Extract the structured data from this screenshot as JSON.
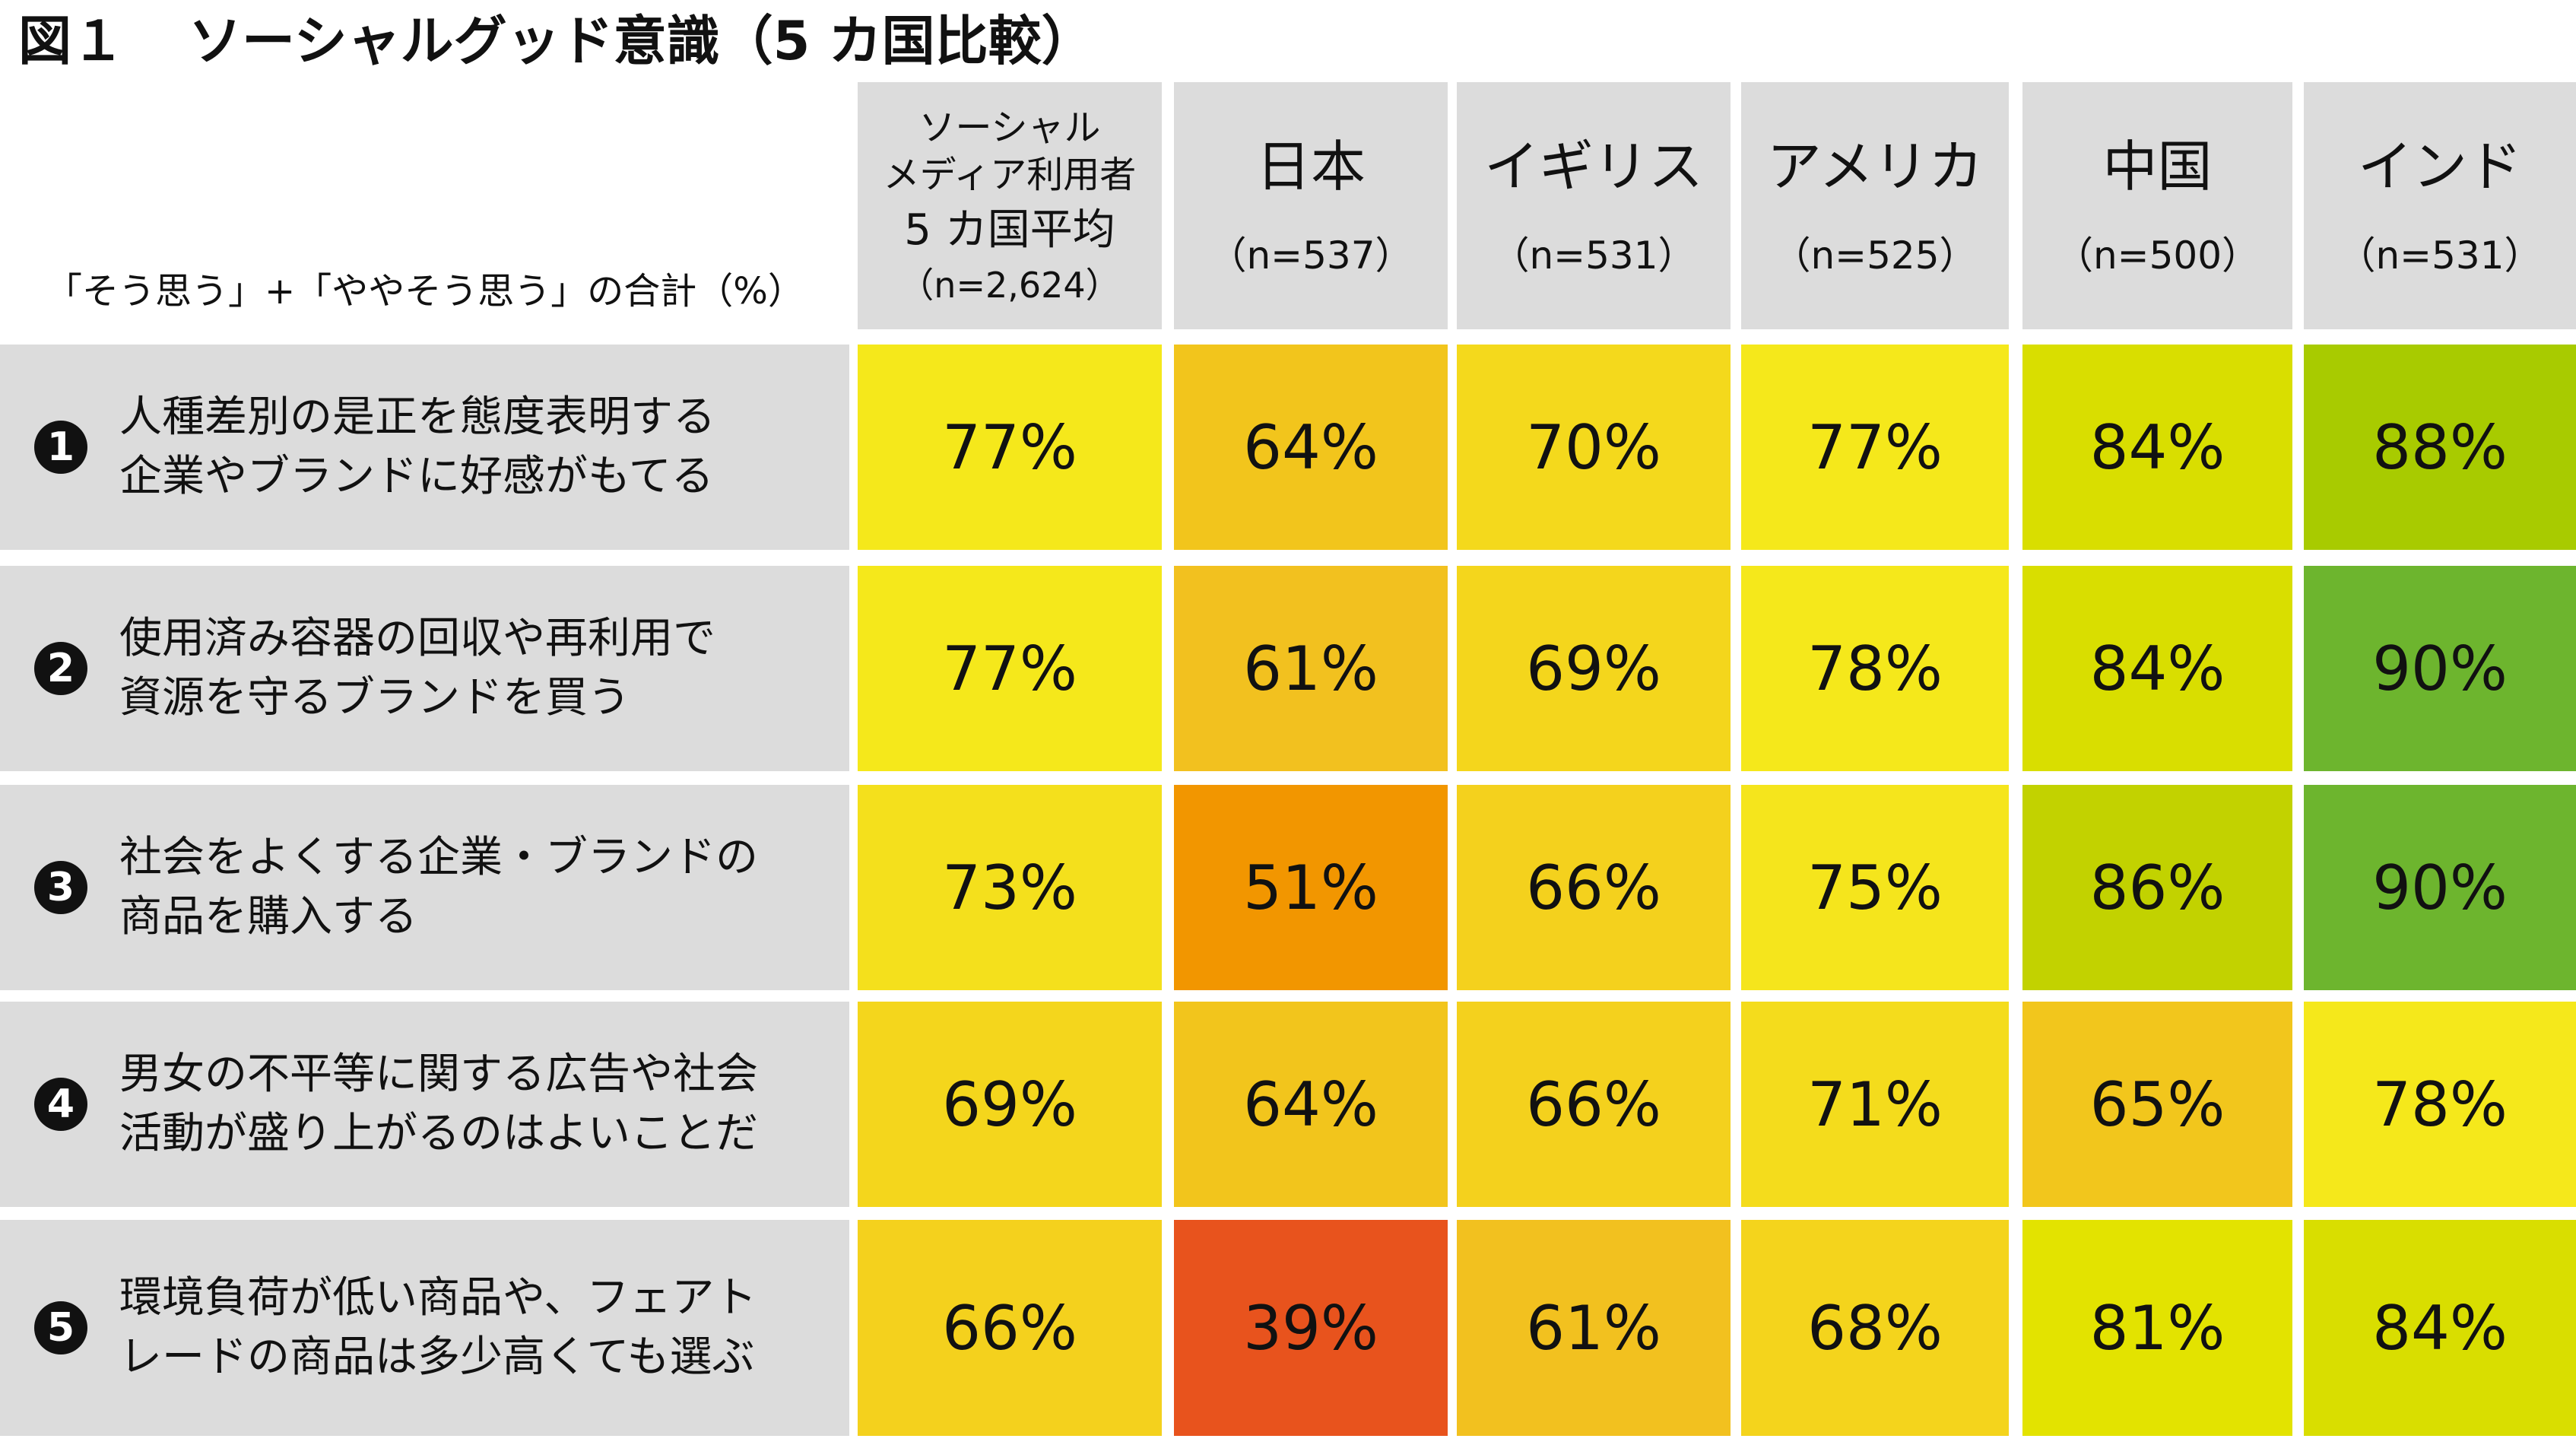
{
  "title": {
    "fig": "図１",
    "text": "ソーシャルグッド意識（5 カ国比較）"
  },
  "note": "「そう思う」+「ややそう思う」の合計（%）",
  "average_column": {
    "line1": "ソーシャル",
    "line2": "メディア利用者",
    "line3": "5 カ国平均",
    "n": "（n=2,624）"
  },
  "columns": [
    {
      "name": "日本",
      "n": "（n=537）"
    },
    {
      "name": "イギリス",
      "n": "（n=531）"
    },
    {
      "name": "アメリカ",
      "n": "（n=525）"
    },
    {
      "name": "中国",
      "n": "（n=500）"
    },
    {
      "name": "インド",
      "n": "（n=531）"
    }
  ],
  "rows": [
    {
      "num": "1",
      "text": "人種差別の是正を態度表明する\n企業やブランドに好感がもてる",
      "cells": [
        {
          "label": "77%",
          "color": "#f5e81b"
        },
        {
          "label": "64%",
          "color": "#f2c51c"
        },
        {
          "label": "70%",
          "color": "#f4d91c"
        },
        {
          "label": "77%",
          "color": "#f5e81b"
        },
        {
          "label": "84%",
          "color": "#d9de00"
        },
        {
          "label": "88%",
          "color": "#a8cb00"
        }
      ]
    },
    {
      "num": "2",
      "text": "使用済み容器の回収や再利用で\n資源を守るブランドを買う",
      "cells": [
        {
          "label": "77%",
          "color": "#f5e81b"
        },
        {
          "label": "61%",
          "color": "#f2c11f"
        },
        {
          "label": "69%",
          "color": "#f4d61c"
        },
        {
          "label": "78%",
          "color": "#f5e81b"
        },
        {
          "label": "84%",
          "color": "#d9de00"
        },
        {
          "label": "90%",
          "color": "#6db52e"
        }
      ]
    },
    {
      "num": "3",
      "text": "社会をよくする企業・ブランドの\n商品を購入する",
      "cells": [
        {
          "label": "73%",
          "color": "#f4e01c"
        },
        {
          "label": "51%",
          "color": "#f29600"
        },
        {
          "label": "66%",
          "color": "#f4d11d"
        },
        {
          "label": "75%",
          "color": "#f5e51c"
        },
        {
          "label": "86%",
          "color": "#c2d200"
        },
        {
          "label": "90%",
          "color": "#6db52e"
        }
      ]
    },
    {
      "num": "4",
      "text": "男女の不平等に関する広告や社会\n活動が盛り上がるのはよいことだ",
      "cells": [
        {
          "label": "69%",
          "color": "#f4d61c"
        },
        {
          "label": "64%",
          "color": "#f2c51c"
        },
        {
          "label": "66%",
          "color": "#f4d11d"
        },
        {
          "label": "71%",
          "color": "#f4dc1c"
        },
        {
          "label": "65%",
          "color": "#f2c61c"
        },
        {
          "label": "78%",
          "color": "#f5e81b"
        }
      ]
    },
    {
      "num": "5",
      "text": "環境負荷が低い商品や、フェアト\nレードの商品は多少高くても選ぶ",
      "cells": [
        {
          "label": "66%",
          "color": "#f4d11d"
        },
        {
          "label": "39%",
          "color": "#e8531d"
        },
        {
          "label": "61%",
          "color": "#f2c11f"
        },
        {
          "label": "68%",
          "color": "#f4d41c"
        },
        {
          "label": "81%",
          "color": "#e3e300"
        },
        {
          "label": "84%",
          "color": "#d9de00"
        }
      ]
    }
  ],
  "chart_data": {
    "type": "heatmap",
    "title": "ソーシャルグッド意識（5 カ国比較）",
    "value_label": "「そう思う」+「ややそう思う」の合計（%）",
    "columns": [
      "ソーシャルメディア利用者 5 カ国平均",
      "日本",
      "イギリス",
      "アメリカ",
      "中国",
      "インド"
    ],
    "rows": [
      "人種差別の是正を態度表明する企業やブランドに好感がもてる",
      "使用済み容器の回収や再利用で資源を守るブランドを買う",
      "社会をよくする企業・ブランドの商品を購入する",
      "男女の不平等に関する広告や社会活動が盛り上がるのはよいことだ",
      "環境負荷が低い商品や、フェアトレードの商品は多少高くても選ぶ"
    ],
    "values": [
      [
        77,
        64,
        70,
        77,
        84,
        88
      ],
      [
        77,
        61,
        69,
        78,
        84,
        90
      ],
      [
        73,
        51,
        66,
        75,
        86,
        90
      ],
      [
        69,
        64,
        66,
        71,
        65,
        78
      ],
      [
        66,
        39,
        61,
        68,
        81,
        84
      ]
    ],
    "unit": "%"
  }
}
